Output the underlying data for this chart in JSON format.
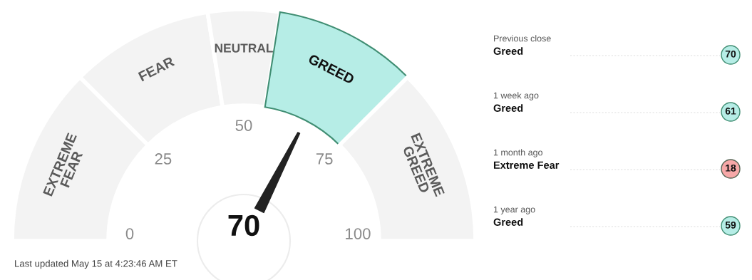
{
  "chart_data": [
    {
      "type": "donut",
      "categories": [
        "EXTREME\nFEAR",
        "FEAR",
        "NEUTRAL",
        "GREED",
        "EXTREME\nGREED"
      ],
      "values": [
        25,
        20,
        10,
        20,
        25
      ],
      "colors": [
        "#f3f3f3",
        "#f3f3f3",
        "#f3f3f3",
        "#b6ede6",
        "#f3f3f3"
      ],
      "needle": "GREED",
      "annotations": [
        "70",
        "0",
        "25",
        "50",
        "75",
        "100",
        "Last updated May 15 at 4:23:46 AM ET"
      ]
    },
    {
      "type": "other",
      "categories": [
        "Previous close",
        "1 week ago",
        "1 month ago",
        "1 year ago"
      ],
      "values": [
        70,
        61,
        18,
        59
      ],
      "colors": [
        "#b6ede6",
        "#b6ede6",
        "#f7a8a8",
        "#b6ede6"
      ],
      "data_labels": true,
      "annotations": [
        "Greed",
        "Greed",
        "Extreme Fear",
        "Greed"
      ]
    }
  ]
}
